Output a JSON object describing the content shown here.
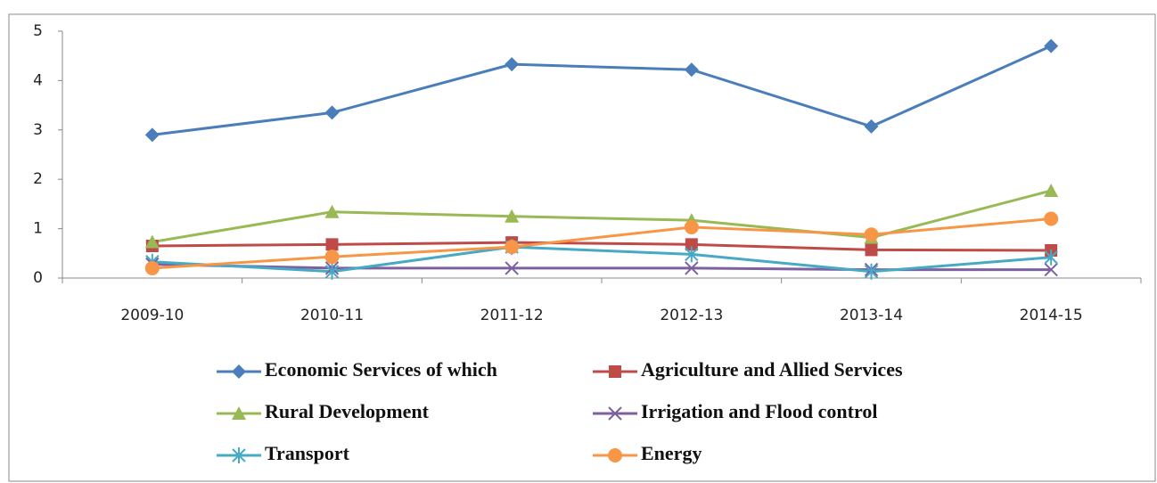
{
  "chart_data": {
    "type": "line",
    "categories": [
      "2009-10",
      "2010-11",
      "2011-12",
      "2012-13",
      "2013-14",
      "2014-15"
    ],
    "series": [
      {
        "name": "Economic Services  of which",
        "color": "#4a7ebb",
        "marker": "diamond",
        "values": [
          2.9,
          3.35,
          4.33,
          4.22,
          3.07,
          4.7
        ]
      },
      {
        "name": "Agriculture and Allied Services",
        "color": "#be4b48",
        "marker": "square",
        "values": [
          0.65,
          0.68,
          0.72,
          0.68,
          0.57,
          0.56
        ]
      },
      {
        "name": "Rural Development",
        "color": "#98b954",
        "marker": "triangle",
        "values": [
          0.73,
          1.34,
          1.25,
          1.17,
          0.82,
          1.77
        ]
      },
      {
        "name": "Irrigation and Flood control",
        "color": "#7d60a0",
        "marker": "x",
        "values": [
          0.28,
          0.2,
          0.2,
          0.2,
          0.17,
          0.17
        ]
      },
      {
        "name": "Transport",
        "color": "#46aac5",
        "marker": "star",
        "values": [
          0.33,
          0.13,
          0.63,
          0.48,
          0.13,
          0.42
        ]
      },
      {
        "name": "Energy",
        "color": "#f79646",
        "marker": "circle",
        "values": [
          0.2,
          0.43,
          0.63,
          1.03,
          0.88,
          1.2
        ]
      }
    ],
    "ylim": [
      0,
      5
    ],
    "yticks": [
      0,
      1,
      2,
      3,
      4,
      5
    ],
    "legend": "bottom"
  }
}
